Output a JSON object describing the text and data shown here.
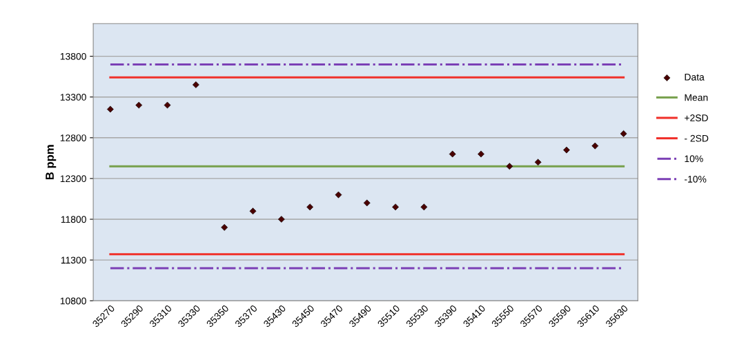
{
  "chart_data": {
    "type": "line",
    "ylabel": "B ppm",
    "categories": [
      "35270",
      "35290",
      "35310",
      "35330",
      "35350",
      "35370",
      "35430",
      "35450",
      "35470",
      "35490",
      "35510",
      "35530",
      "35390",
      "35410",
      "35550",
      "35570",
      "35590",
      "35610",
      "35630"
    ],
    "series": [
      {
        "name": "Data",
        "type": "scatter",
        "marker": "diamond",
        "color": "#4a0000",
        "values": [
          13150,
          13200,
          13200,
          13450,
          11700,
          11900,
          11800,
          11950,
          12100,
          12000,
          11950,
          11950,
          12600,
          12600,
          12450,
          12500,
          12650,
          12700,
          12850
        ]
      },
      {
        "name": "Mean",
        "line_style": "solid",
        "color": "#77a04c",
        "values": [
          12450,
          12450,
          12450,
          12450,
          12450,
          12450,
          12450,
          12450,
          12450,
          12450,
          12450,
          12450,
          12450,
          12450,
          12450,
          12450,
          12450,
          12450,
          12450
        ]
      },
      {
        "name": "+2SD",
        "line_style": "solid",
        "color": "#f0302a",
        "values": [
          13540,
          13540,
          13540,
          13540,
          13540,
          13540,
          13540,
          13540,
          13540,
          13540,
          13540,
          13540,
          13540,
          13540,
          13540,
          13540,
          13540,
          13540,
          13540
        ]
      },
      {
        "name": "- 2SD",
        "line_style": "solid",
        "color": "#f0302a",
        "values": [
          11370,
          11370,
          11370,
          11370,
          11370,
          11370,
          11370,
          11370,
          11370,
          11370,
          11370,
          11370,
          11370,
          11370,
          11370,
          11370,
          11370,
          11370,
          11370
        ]
      },
      {
        "name": "10%",
        "line_style": "dashdot",
        "color": "#7b3fb5",
        "values": [
          13700,
          13700,
          13700,
          13700,
          13700,
          13700,
          13700,
          13700,
          13700,
          13700,
          13700,
          13700,
          13700,
          13700,
          13700,
          13700,
          13700,
          13700,
          13700
        ]
      },
      {
        "name": "-10%",
        "line_style": "dashdot",
        "color": "#7b3fb5",
        "values": [
          11200,
          11200,
          11200,
          11200,
          11200,
          11200,
          11200,
          11200,
          11200,
          11200,
          11200,
          11200,
          11200,
          11200,
          11200,
          11200,
          11200,
          11200,
          11200
        ]
      }
    ],
    "ylim": [
      10800,
      14200
    ],
    "yticks": [
      10800,
      11300,
      11800,
      12300,
      12800,
      13300,
      13800
    ],
    "grid": "y",
    "legend": "right"
  }
}
